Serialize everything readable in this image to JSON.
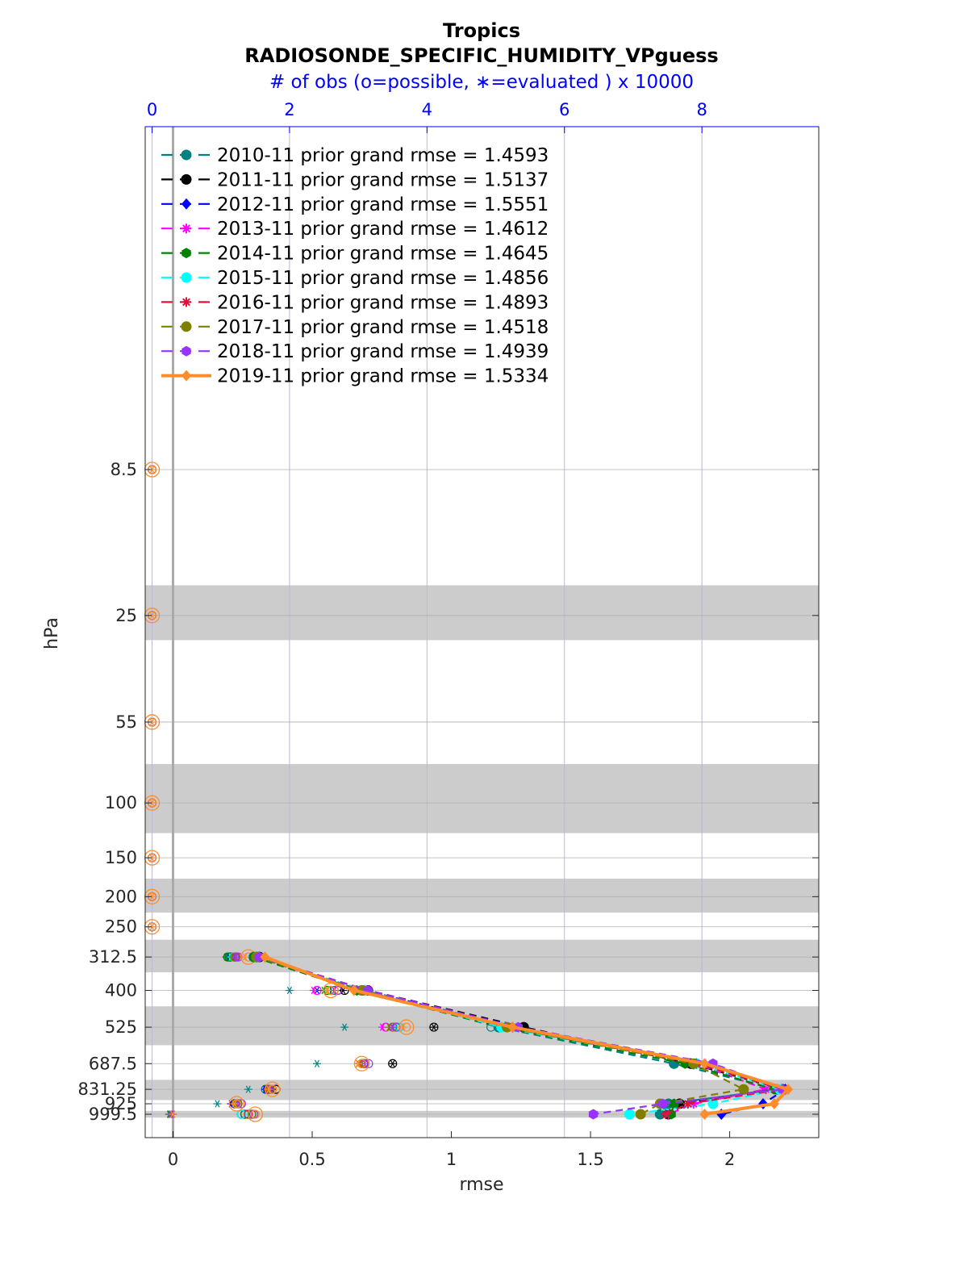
{
  "chart_data": {
    "type": "line",
    "title": "Tropics",
    "subtitle": "RADIOSONDE_SPECIFIC_HUMIDITY_VPguess",
    "top_axis_label": "# of obs (o=possible, ∗=evaluated ) x 10000",
    "xlabel": "rmse",
    "ylabel": "hPa",
    "xlim": [
      -0.1,
      2.32
    ],
    "top_xlim": [
      -0.1,
      9.7
    ],
    "x_ticks": [
      "0",
      "0.5",
      "1",
      "1.5",
      "2"
    ],
    "x_tick_values": [
      0,
      0.5,
      1,
      1.5,
      2
    ],
    "top_ticks": [
      "0",
      "2",
      "4",
      "6",
      "8"
    ],
    "top_tick_values": [
      0,
      2,
      4,
      6,
      8
    ],
    "y_scale": "log",
    "y_reversed": true,
    "levels": [
      "8.5",
      "25",
      "55",
      "100",
      "150",
      "200",
      "250",
      "312.5",
      "400",
      "525",
      "687.5",
      "831.25",
      "925",
      "999.5"
    ],
    "level_values": [
      8.5,
      25,
      55,
      100,
      150,
      200,
      250,
      312.5,
      400,
      525,
      687.5,
      831.25,
      925,
      999.5
    ],
    "shaded_bands_hPa": [
      [
        20,
        30
      ],
      [
        75,
        125
      ],
      [
        175,
        225
      ],
      [
        275,
        350
      ],
      [
        450,
        600
      ],
      [
        775,
        900
      ],
      [
        975,
        1025
      ]
    ],
    "grid": true,
    "legend_position": "top-left",
    "series": [
      {
        "name": "2010-11 prior grand rmse = 1.4593",
        "color": "#008080",
        "style": "dashed",
        "marker": "circle",
        "levels": [
          312.5,
          400,
          525,
          687.5,
          831.25,
          925,
          999.5
        ],
        "rmse": [
          0.29,
          0.68,
          1.17,
          1.8,
          2.17,
          1.78,
          1.75
        ],
        "obs_possible": [
          1.12,
          2.65,
          4.93,
          3.08,
          1.65,
          1.23,
          1.3
        ],
        "obs_evaluated": [
          1.1,
          2.0,
          2.8,
          2.4,
          1.4,
          0.95,
          0.25
        ]
      },
      {
        "name": "2011-11 prior grand rmse = 1.5137",
        "color": "#000000",
        "style": "dashed",
        "marker": "circle",
        "levels": [
          312.5,
          400,
          525,
          687.5,
          831.25,
          925,
          999.5
        ],
        "rmse": [
          0.31,
          0.7,
          1.26,
          1.86,
          2.19,
          1.82,
          1.78
        ],
        "obs_possible": [
          1.2,
          2.8,
          4.1,
          3.5,
          1.8,
          1.25,
          1.45
        ],
        "obs_evaluated": [
          1.18,
          2.78,
          4.1,
          3.5,
          1.75,
          1.2,
          0.3
        ]
      },
      {
        "name": "2012-11 prior grand rmse = 1.5551",
        "color": "#0000ff",
        "style": "dashed",
        "marker": "diamond",
        "levels": [
          312.5,
          400,
          525,
          687.5,
          831.25,
          925,
          999.5
        ],
        "rmse": [
          0.3,
          0.69,
          1.22,
          1.88,
          2.2,
          2.12,
          1.97
        ],
        "obs_possible": [
          1.15,
          2.6,
          3.6,
          3.05,
          1.68,
          1.2,
          1.3
        ],
        "obs_evaluated": [
          1.12,
          2.4,
          3.5,
          3.0,
          1.65,
          1.15,
          0.28
        ]
      },
      {
        "name": "2013-11 prior grand rmse = 1.4612",
        "color": "#ff00ff",
        "style": "dashed",
        "marker": "star",
        "levels": [
          312.5,
          400,
          525,
          687.5,
          831.25,
          925,
          999.5
        ],
        "rmse": [
          0.3,
          0.67,
          1.2,
          1.88,
          2.13,
          1.87,
          1.78
        ],
        "obs_possible": [
          1.2,
          2.4,
          3.4,
          3.1,
          1.7,
          1.3,
          1.35
        ],
        "obs_evaluated": [
          1.18,
          2.35,
          3.35,
          3.05,
          1.68,
          1.25,
          0.27
        ]
      },
      {
        "name": "2014-11 prior grand rmse = 1.4645",
        "color": "#008000",
        "style": "dashed",
        "marker": "hexagram",
        "levels": [
          312.5,
          400,
          525,
          687.5,
          831.25,
          925,
          999.5
        ],
        "rmse": [
          0.29,
          0.66,
          1.18,
          1.84,
          2.16,
          1.8,
          1.79
        ],
        "obs_possible": [
          1.1,
          2.55,
          3.55,
          3.05,
          1.7,
          1.22,
          1.35
        ],
        "obs_evaluated": [
          1.08,
          2.5,
          3.5,
          3.0,
          1.68,
          1.2,
          0.26
        ]
      },
      {
        "name": "2015-11 prior grand rmse = 1.4856",
        "color": "#00ffff",
        "style": "dashed",
        "marker": "circle",
        "levels": [
          312.5,
          400,
          525,
          687.5,
          831.25,
          925,
          999.5
        ],
        "rmse": [
          0.3,
          0.69,
          1.18,
          1.88,
          2.18,
          1.94,
          1.64
        ],
        "obs_possible": [
          1.18,
          2.6,
          3.6,
          3.1,
          1.7,
          1.25,
          1.3
        ],
        "obs_evaluated": [
          1.15,
          2.55,
          3.55,
          3.05,
          1.68,
          1.2,
          0.28
        ]
      },
      {
        "name": "2016-11 prior grand rmse = 1.4893",
        "color": "#dc143c",
        "style": "dashed",
        "marker": "star",
        "levels": [
          312.5,
          400,
          525,
          687.5,
          831.25,
          925,
          999.5
        ],
        "rmse": [
          0.31,
          0.7,
          1.2,
          1.88,
          2.19,
          1.85,
          1.77
        ],
        "obs_possible": [
          1.22,
          2.7,
          3.5,
          3.08,
          1.7,
          1.25,
          1.4
        ],
        "obs_evaluated": [
          1.2,
          2.65,
          3.45,
          3.05,
          1.68,
          1.22,
          0.3
        ]
      },
      {
        "name": "2017-11 prior grand rmse = 1.4518",
        "color": "#808000",
        "style": "dashed",
        "marker": "circle",
        "levels": [
          312.5,
          400,
          525,
          687.5,
          831.25,
          925,
          999.5
        ],
        "rmse": [
          0.3,
          0.68,
          1.2,
          1.87,
          2.05,
          1.75,
          1.68
        ],
        "obs_possible": [
          1.2,
          2.6,
          3.5,
          3.1,
          1.72,
          1.25,
          1.45
        ],
        "obs_evaluated": [
          1.18,
          2.55,
          3.45,
          3.05,
          1.7,
          1.22,
          0.27
        ]
      },
      {
        "name": "2018-11 prior grand rmse = 1.4939",
        "color": "#9933ff",
        "style": "dashed",
        "marker": "hexagram",
        "levels": [
          312.5,
          400,
          525,
          687.5,
          831.25,
          925,
          999.5
        ],
        "rmse": [
          0.31,
          0.7,
          1.24,
          1.94,
          2.19,
          1.76,
          1.51
        ],
        "obs_possible": [
          1.25,
          2.7,
          3.55,
          3.15,
          1.75,
          1.3,
          1.48
        ],
        "obs_evaluated": [
          1.22,
          2.65,
          3.5,
          3.1,
          1.72,
          1.25,
          0.28
        ]
      },
      {
        "name": "2019-11 prior grand rmse = 1.5334",
        "color": "#ff8c2a",
        "style": "solid",
        "marker": "diamond",
        "levels": [
          312.5,
          400,
          525,
          687.5,
          831.25,
          925,
          999.5
        ],
        "rmse": [
          0.33,
          0.65,
          1.22,
          1.91,
          2.21,
          2.16,
          1.91
        ],
        "obs_possible": [
          1.4,
          2.6,
          3.7,
          3.05,
          1.75,
          1.23,
          1.5
        ],
        "obs_evaluated": [
          1.35,
          2.55,
          3.65,
          3.0,
          1.7,
          1.2,
          0.3
        ]
      }
    ],
    "upper_levels_obs": {
      "levels": [
        8.5,
        25,
        55,
        100,
        150,
        200,
        250
      ],
      "obs_possible": [
        0,
        0,
        0,
        0,
        0,
        0,
        0
      ],
      "obs_evaluated": [
        0,
        0,
        0,
        0,
        0,
        0,
        0
      ]
    }
  }
}
